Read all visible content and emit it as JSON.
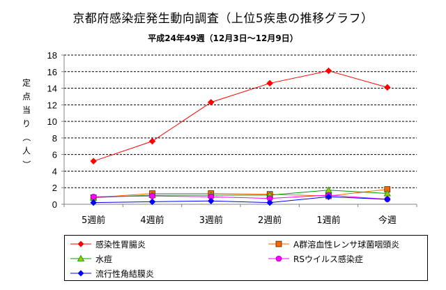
{
  "title": "京都府感染症発生動向調査（上位5疾患の推移グラフ）",
  "subtitle": "平成24年49週（12月3日～12月9日）",
  "chart_data": {
    "type": "line",
    "ylabel": "定点当り（人）",
    "ylim": [
      0,
      18
    ],
    "yticks": [
      0,
      2,
      4,
      6,
      8,
      10,
      12,
      14,
      16,
      18
    ],
    "categories": [
      "5週前",
      "4週前",
      "3週前",
      "2週前",
      "1週前",
      "今週"
    ],
    "grid": true,
    "legend_position": "bottom",
    "series": [
      {
        "name": "感染性胃腸炎",
        "color": "#ff0000",
        "marker": "diamond",
        "values": [
          5.2,
          7.6,
          12.3,
          14.6,
          16.1,
          14.1
        ]
      },
      {
        "name": "A群溶血性レンサ球菌咽頭炎",
        "color": "#ff6600",
        "marker": "square",
        "values": [
          0.8,
          1.3,
          1.3,
          1.2,
          1.0,
          1.8
        ]
      },
      {
        "name": "水痘",
        "color": "#009900",
        "marker": "triangle",
        "values": [
          0.8,
          1.1,
          1.1,
          1.1,
          1.7,
          1.3
        ]
      },
      {
        "name": "RSウイルス感染症",
        "color": "#ff00ff",
        "marker": "circle",
        "values": [
          0.9,
          1.0,
          0.9,
          0.7,
          1.1,
          0.6
        ]
      },
      {
        "name": "流行性角結膜炎",
        "color": "#0000ff",
        "marker": "diamond",
        "values": [
          0.2,
          0.3,
          0.4,
          0.2,
          0.9,
          0.6
        ]
      }
    ]
  }
}
